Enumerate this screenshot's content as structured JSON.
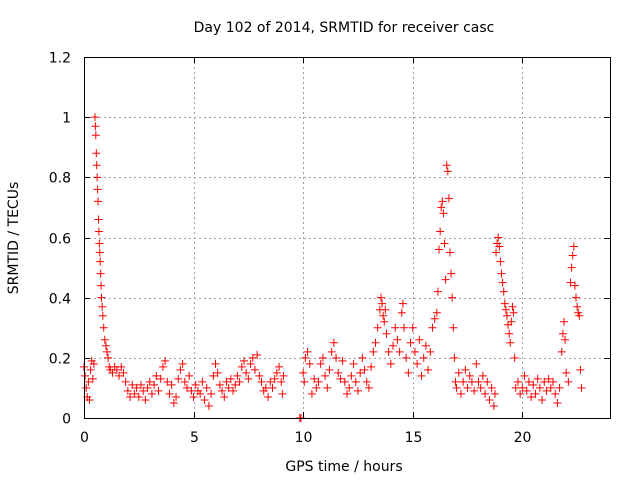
{
  "chart_data": {
    "type": "scatter",
    "title": "Day 102 of 2014, SRMTID for receiver casc",
    "xlabel": "GPS time / hours",
    "ylabel": "SRMTID / TECUs",
    "xlim": [
      0,
      24
    ],
    "ylim": [
      0,
      1.2
    ],
    "xticks": [
      0,
      5,
      10,
      15,
      20
    ],
    "xtick_labels": [
      "0",
      "5",
      "10",
      "15",
      "20"
    ],
    "yticks": [
      0,
      0.2,
      0.4,
      0.6,
      0.8,
      1.0,
      1.2
    ],
    "ytick_labels": [
      "0",
      "0.2",
      "0.4",
      "0.6",
      "0.8",
      "1",
      "1.2"
    ],
    "grid": true,
    "marker": "+",
    "color": "#ff0000",
    "series": [
      {
        "name": "SRMTID",
        "points": [
          [
            0.0,
            0.17
          ],
          [
            0.05,
            0.14
          ],
          [
            0.1,
            0.1
          ],
          [
            0.15,
            0.07
          ],
          [
            0.2,
            0.12
          ],
          [
            0.25,
            0.06
          ],
          [
            0.3,
            0.16
          ],
          [
            0.35,
            0.19
          ],
          [
            0.4,
            0.13
          ],
          [
            0.45,
            0.18
          ],
          [
            0.5,
            1.0
          ],
          [
            0.52,
            0.97
          ],
          [
            0.54,
            0.94
          ],
          [
            0.56,
            0.88
          ],
          [
            0.58,
            0.84
          ],
          [
            0.6,
            0.8
          ],
          [
            0.62,
            0.76
          ],
          [
            0.64,
            0.72
          ],
          [
            0.66,
            0.66
          ],
          [
            0.68,
            0.62
          ],
          [
            0.7,
            0.58
          ],
          [
            0.72,
            0.55
          ],
          [
            0.74,
            0.52
          ],
          [
            0.76,
            0.48
          ],
          [
            0.78,
            0.44
          ],
          [
            0.8,
            0.4
          ],
          [
            0.83,
            0.37
          ],
          [
            0.86,
            0.34
          ],
          [
            0.9,
            0.3
          ],
          [
            0.95,
            0.26
          ],
          [
            1.0,
            0.24
          ],
          [
            1.05,
            0.22
          ],
          [
            1.1,
            0.2
          ],
          [
            1.15,
            0.17
          ],
          [
            1.2,
            0.16
          ],
          [
            1.3,
            0.15
          ],
          [
            1.4,
            0.17
          ],
          [
            1.5,
            0.16
          ],
          [
            1.6,
            0.14
          ],
          [
            1.7,
            0.17
          ],
          [
            1.8,
            0.15
          ],
          [
            1.9,
            0.12
          ],
          [
            2.0,
            0.09
          ],
          [
            2.1,
            0.07
          ],
          [
            2.2,
            0.11
          ],
          [
            2.3,
            0.08
          ],
          [
            2.4,
            0.1
          ],
          [
            2.5,
            0.07
          ],
          [
            2.6,
            0.11
          ],
          [
            2.7,
            0.09
          ],
          [
            2.8,
            0.06
          ],
          [
            2.9,
            0.1
          ],
          [
            3.0,
            0.12
          ],
          [
            3.1,
            0.08
          ],
          [
            3.2,
            0.11
          ],
          [
            3.3,
            0.14
          ],
          [
            3.4,
            0.09
          ],
          [
            3.5,
            0.13
          ],
          [
            3.6,
            0.17
          ],
          [
            3.7,
            0.19
          ],
          [
            3.8,
            0.12
          ],
          [
            3.9,
            0.08
          ],
          [
            4.0,
            0.11
          ],
          [
            4.1,
            0.05
          ],
          [
            4.2,
            0.07
          ],
          [
            4.3,
            0.13
          ],
          [
            4.4,
            0.16
          ],
          [
            4.5,
            0.18
          ],
          [
            4.6,
            0.12
          ],
          [
            4.7,
            0.1
          ],
          [
            4.8,
            0.14
          ],
          [
            4.9,
            0.09
          ],
          [
            5.0,
            0.07
          ],
          [
            5.1,
            0.11
          ],
          [
            5.2,
            0.09
          ],
          [
            5.3,
            0.08
          ],
          [
            5.4,
            0.12
          ],
          [
            5.5,
            0.06
          ],
          [
            5.6,
            0.1
          ],
          [
            5.7,
            0.04
          ],
          [
            5.8,
            0.08
          ],
          [
            5.9,
            0.14
          ],
          [
            6.0,
            0.18
          ],
          [
            6.1,
            0.15
          ],
          [
            6.2,
            0.11
          ],
          [
            6.3,
            0.09
          ],
          [
            6.4,
            0.07
          ],
          [
            6.5,
            0.12
          ],
          [
            6.6,
            0.1
          ],
          [
            6.7,
            0.13
          ],
          [
            6.8,
            0.09
          ],
          [
            6.9,
            0.11
          ],
          [
            7.0,
            0.14
          ],
          [
            7.1,
            0.12
          ],
          [
            7.2,
            0.17
          ],
          [
            7.3,
            0.19
          ],
          [
            7.4,
            0.15
          ],
          [
            7.5,
            0.13
          ],
          [
            7.6,
            0.18
          ],
          [
            7.7,
            0.2
          ],
          [
            7.8,
            0.16
          ],
          [
            7.9,
            0.21
          ],
          [
            8.0,
            0.14
          ],
          [
            8.1,
            0.12
          ],
          [
            8.2,
            0.09
          ],
          [
            8.3,
            0.1
          ],
          [
            8.4,
            0.07
          ],
          [
            8.5,
            0.12
          ],
          [
            8.6,
            0.1
          ],
          [
            8.7,
            0.13
          ],
          [
            8.8,
            0.15
          ],
          [
            8.9,
            0.17
          ],
          [
            9.0,
            0.12
          ],
          [
            9.05,
            0.08
          ],
          [
            9.1,
            0.14
          ],
          [
            9.85,
            0.0
          ],
          [
            9.9,
            0.0
          ],
          [
            10.0,
            0.15
          ],
          [
            10.05,
            0.12
          ],
          [
            10.1,
            0.2
          ],
          [
            10.2,
            0.22
          ],
          [
            10.3,
            0.18
          ],
          [
            10.4,
            0.08
          ],
          [
            10.5,
            0.13
          ],
          [
            10.6,
            0.1
          ],
          [
            10.7,
            0.12
          ],
          [
            10.8,
            0.18
          ],
          [
            10.9,
            0.2
          ],
          [
            11.0,
            0.14
          ],
          [
            11.1,
            0.1
          ],
          [
            11.2,
            0.16
          ],
          [
            11.3,
            0.22
          ],
          [
            11.4,
            0.25
          ],
          [
            11.5,
            0.2
          ],
          [
            11.6,
            0.15
          ],
          [
            11.7,
            0.13
          ],
          [
            11.8,
            0.19
          ],
          [
            11.9,
            0.12
          ],
          [
            12.0,
            0.08
          ],
          [
            12.1,
            0.1
          ],
          [
            12.2,
            0.14
          ],
          [
            12.3,
            0.18
          ],
          [
            12.4,
            0.12
          ],
          [
            12.5,
            0.09
          ],
          [
            12.6,
            0.15
          ],
          [
            12.7,
            0.2
          ],
          [
            12.8,
            0.16
          ],
          [
            12.9,
            0.12
          ],
          [
            13.0,
            0.1
          ],
          [
            13.1,
            0.17
          ],
          [
            13.2,
            0.22
          ],
          [
            13.3,
            0.25
          ],
          [
            13.4,
            0.3
          ],
          [
            13.5,
            0.36
          ],
          [
            13.55,
            0.4
          ],
          [
            13.6,
            0.38
          ],
          [
            13.65,
            0.34
          ],
          [
            13.7,
            0.32
          ],
          [
            13.75,
            0.36
          ],
          [
            13.8,
            0.28
          ],
          [
            13.9,
            0.22
          ],
          [
            14.0,
            0.18
          ],
          [
            14.1,
            0.24
          ],
          [
            14.2,
            0.3
          ],
          [
            14.3,
            0.26
          ],
          [
            14.4,
            0.22
          ],
          [
            14.5,
            0.35
          ],
          [
            14.55,
            0.38
          ],
          [
            14.6,
            0.3
          ],
          [
            14.7,
            0.2
          ],
          [
            14.8,
            0.15
          ],
          [
            14.9,
            0.25
          ],
          [
            15.0,
            0.3
          ],
          [
            15.1,
            0.22
          ],
          [
            15.2,
            0.18
          ],
          [
            15.3,
            0.26
          ],
          [
            15.4,
            0.14
          ],
          [
            15.5,
            0.2
          ],
          [
            15.6,
            0.24
          ],
          [
            15.7,
            0.16
          ],
          [
            15.8,
            0.22
          ],
          [
            15.9,
            0.3
          ],
          [
            16.0,
            0.33
          ],
          [
            16.1,
            0.35
          ],
          [
            16.15,
            0.42
          ],
          [
            16.2,
            0.56
          ],
          [
            16.25,
            0.62
          ],
          [
            16.3,
            0.7
          ],
          [
            16.35,
            0.72
          ],
          [
            16.4,
            0.68
          ],
          [
            16.45,
            0.58
          ],
          [
            16.5,
            0.46
          ],
          [
            16.55,
            0.84
          ],
          [
            16.6,
            0.82
          ],
          [
            16.65,
            0.73
          ],
          [
            16.7,
            0.55
          ],
          [
            16.75,
            0.48
          ],
          [
            16.8,
            0.4
          ],
          [
            16.85,
            0.3
          ],
          [
            16.9,
            0.2
          ],
          [
            16.95,
            0.12
          ],
          [
            17.0,
            0.1
          ],
          [
            17.1,
            0.15
          ],
          [
            17.2,
            0.08
          ],
          [
            17.3,
            0.12
          ],
          [
            17.4,
            0.16
          ],
          [
            17.5,
            0.1
          ],
          [
            17.6,
            0.14
          ],
          [
            17.7,
            0.12
          ],
          [
            17.8,
            0.09
          ],
          [
            17.9,
            0.18
          ],
          [
            18.0,
            0.12
          ],
          [
            18.1,
            0.1
          ],
          [
            18.2,
            0.14
          ],
          [
            18.3,
            0.08
          ],
          [
            18.4,
            0.12
          ],
          [
            18.5,
            0.06
          ],
          [
            18.6,
            0.1
          ],
          [
            18.7,
            0.04
          ],
          [
            18.75,
            0.08
          ],
          [
            18.8,
            0.55
          ],
          [
            18.85,
            0.58
          ],
          [
            18.9,
            0.6
          ],
          [
            18.95,
            0.57
          ],
          [
            19.0,
            0.52
          ],
          [
            19.05,
            0.48
          ],
          [
            19.1,
            0.45
          ],
          [
            19.15,
            0.42
          ],
          [
            19.2,
            0.38
          ],
          [
            19.25,
            0.36
          ],
          [
            19.3,
            0.34
          ],
          [
            19.35,
            0.31
          ],
          [
            19.4,
            0.28
          ],
          [
            19.45,
            0.25
          ],
          [
            19.5,
            0.32
          ],
          [
            19.55,
            0.37
          ],
          [
            19.6,
            0.35
          ],
          [
            19.65,
            0.2
          ],
          [
            19.7,
            0.1
          ],
          [
            19.8,
            0.12
          ],
          [
            19.9,
            0.08
          ],
          [
            20.0,
            0.1
          ],
          [
            20.1,
            0.14
          ],
          [
            20.2,
            0.09
          ],
          [
            20.3,
            0.12
          ],
          [
            20.4,
            0.07
          ],
          [
            20.5,
            0.11
          ],
          [
            20.6,
            0.08
          ],
          [
            20.7,
            0.13
          ],
          [
            20.8,
            0.1
          ],
          [
            20.9,
            0.06
          ],
          [
            21.0,
            0.12
          ],
          [
            21.1,
            0.09
          ],
          [
            21.2,
            0.13
          ],
          [
            21.3,
            0.1
          ],
          [
            21.4,
            0.12
          ],
          [
            21.5,
            0.08
          ],
          [
            21.6,
            0.05
          ],
          [
            21.7,
            0.1
          ],
          [
            21.8,
            0.22
          ],
          [
            21.85,
            0.28
          ],
          [
            21.9,
            0.32
          ],
          [
            21.95,
            0.26
          ],
          [
            22.0,
            0.15
          ],
          [
            22.1,
            0.12
          ],
          [
            22.2,
            0.45
          ],
          [
            22.25,
            0.5
          ],
          [
            22.3,
            0.54
          ],
          [
            22.35,
            0.57
          ],
          [
            22.4,
            0.44
          ],
          [
            22.45,
            0.4
          ],
          [
            22.5,
            0.37
          ],
          [
            22.55,
            0.35
          ],
          [
            22.6,
            0.34
          ],
          [
            22.65,
            0.16
          ],
          [
            22.7,
            0.1
          ]
        ]
      }
    ]
  }
}
